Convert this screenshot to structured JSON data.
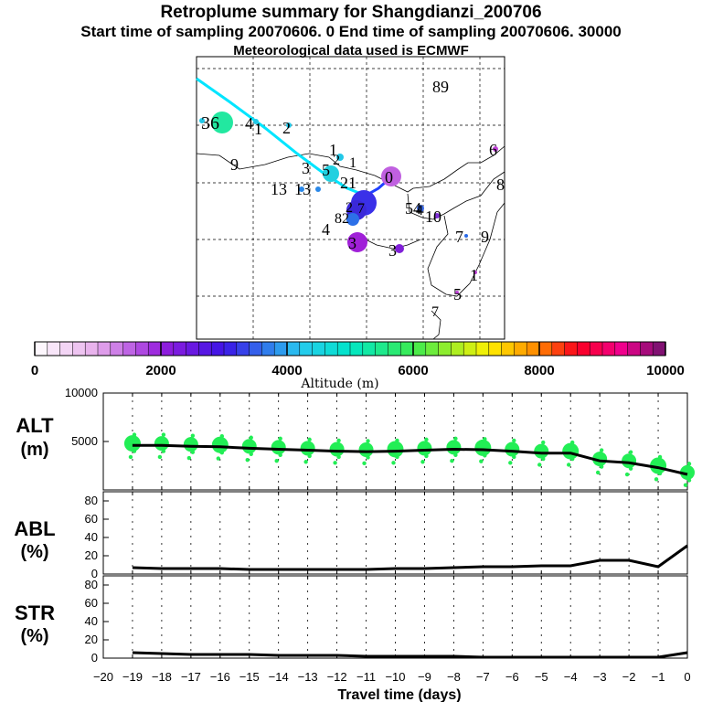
{
  "header": {
    "title": "Retroplume summary for Shangdianzi_200706",
    "sampling_line": "Start time of sampling 20070606.     0     End time of sampling 20070606. 30000",
    "met_line": "Meteorological data used is ECMWF"
  },
  "colors": {
    "track": "#00e5ff",
    "track_recent": "#2040ff",
    "alt_points": "#22ee55",
    "series_line": "#000000",
    "axis": "#000000",
    "grid": "#000000"
  },
  "chart_data": [
    {
      "type": "scatter",
      "name": "map",
      "labels": [
        "36",
        "4",
        "1",
        "2",
        "9",
        "1",
        "2",
        "3",
        "5",
        "21",
        "0",
        "1",
        "13",
        "13",
        "2",
        "4",
        "82",
        "4",
        "3",
        "54",
        "10",
        "7",
        "9",
        "3",
        "1",
        "5",
        "6",
        "7",
        "7",
        "8",
        "89"
      ],
      "legend": {
        "title": "Altitude (m)",
        "ticks": [
          "0",
          "2000",
          "4000",
          "6000",
          "8000",
          "10000"
        ],
        "min": 0,
        "max": 10000,
        "bins": 50
      }
    },
    {
      "type": "line",
      "name": "ALT",
      "label_top": "ALT",
      "label_bottom": "(m)",
      "ylim": [
        0,
        10000
      ],
      "yticks": [
        "5000",
        "10000"
      ],
      "x": [
        -19,
        -18,
        -17,
        -16,
        -15,
        -14,
        -13,
        -12,
        -11,
        -10,
        -9,
        -8,
        -7,
        -6,
        -5,
        -4,
        -3,
        -2,
        -1,
        0
      ],
      "values": [
        4600,
        4600,
        4500,
        4450,
        4300,
        4200,
        4100,
        4000,
        3950,
        4000,
        4100,
        4200,
        4150,
        4000,
        3800,
        3800,
        3000,
        2800,
        2300,
        1600
      ]
    },
    {
      "type": "line",
      "name": "ABL",
      "label_top": "ABL",
      "label_bottom": "(%)",
      "ylim": [
        0,
        90
      ],
      "yticks": [
        "0",
        "20",
        "40",
        "60",
        "80"
      ],
      "x": [
        -19,
        -18,
        -17,
        -16,
        -15,
        -14,
        -13,
        -12,
        -11,
        -10,
        -9,
        -8,
        -7,
        -6,
        -5,
        -4,
        -3,
        -2,
        -1,
        0
      ],
      "values": [
        7,
        6,
        6,
        6,
        5,
        5,
        5,
        5,
        5,
        6,
        6,
        7,
        8,
        8,
        9,
        9,
        15,
        15,
        8,
        31
      ]
    },
    {
      "type": "line",
      "name": "STR",
      "label_top": "STR",
      "label_bottom": "(%)",
      "ylim": [
        0,
        90
      ],
      "yticks": [
        "0",
        "20",
        "40",
        "60",
        "80"
      ],
      "x": [
        -19,
        -18,
        -17,
        -16,
        -15,
        -14,
        -13,
        -12,
        -11,
        -10,
        -9,
        -8,
        -7,
        -6,
        -5,
        -4,
        -3,
        -2,
        -1,
        0
      ],
      "values": [
        6,
        5,
        4,
        4,
        4,
        3,
        3,
        3,
        2,
        2,
        2,
        2,
        1,
        1,
        1,
        1,
        1,
        1,
        1,
        6
      ]
    }
  ],
  "x_axis": {
    "label": "Travel time (days)",
    "ticks": [
      "−20",
      "−19",
      "−18",
      "−17",
      "−16",
      "−15",
      "−14",
      "−13",
      "−12",
      "−11",
      "−10",
      "−9",
      "−8",
      "−7",
      "−6",
      "−5",
      "−4",
      "−3",
      "−2",
      "−1",
      "0"
    ]
  }
}
